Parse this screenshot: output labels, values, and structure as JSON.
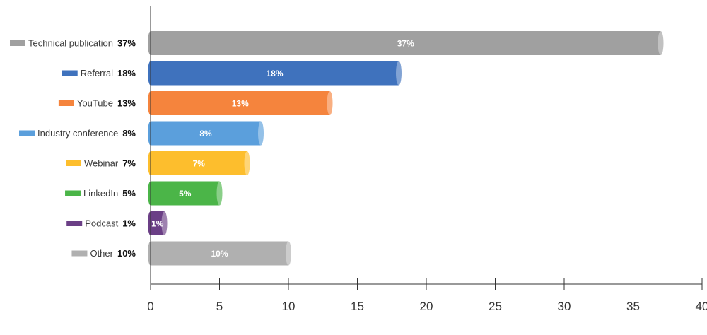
{
  "chart_data": {
    "type": "bar",
    "orientation": "horizontal",
    "categories": [
      "Technical publication",
      "Referral",
      "YouTube",
      "Industry conference",
      "Webinar",
      "LinkedIn",
      "Podcast",
      "Other"
    ],
    "values": [
      37,
      18,
      13,
      8,
      7,
      5,
      1,
      10
    ],
    "value_labels": [
      "37%",
      "18%",
      "13%",
      "8%",
      "7%",
      "5%",
      "1%",
      "10%"
    ],
    "colors": [
      "#A0A0A0",
      "#3F72BD",
      "#F5843D",
      "#5B9FDC",
      "#FDBE2D",
      "#4BB548",
      "#6B3F86",
      "#B0B0B0"
    ],
    "xlim": [
      0,
      40
    ],
    "xticks": [
      "0",
      "5",
      "10",
      "15",
      "20",
      "25",
      "30",
      "35",
      "40"
    ],
    "title": "",
    "xlabel": "",
    "ylabel": "",
    "grid": false,
    "legend": "left, inline with each bar"
  }
}
